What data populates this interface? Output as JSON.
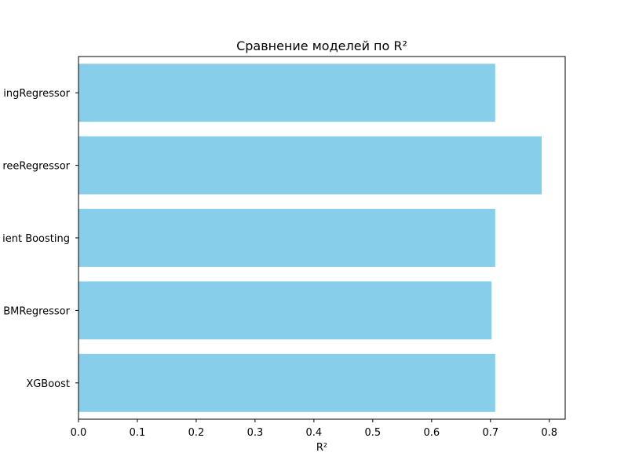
{
  "chart_data": {
    "type": "bar",
    "orientation": "horizontal",
    "title": "Сравнение моделей по R²",
    "xlabel": "R²",
    "ylabel": "",
    "categories": [
      "XGBoost",
      "LGBMRegressor",
      "Gradient Boosting",
      "ExtraTreeRegressor",
      "HistGradientBoostingRegressor"
    ],
    "categories_visible": [
      "XGBoost",
      "BMRegressor",
      "ient Boosting",
      "reeRegressor",
      "ingRegressor"
    ],
    "values": [
      0.708,
      0.702,
      0.708,
      0.787,
      0.708
    ],
    "xlim": [
      0.0,
      0.827
    ],
    "xticks": [
      0.0,
      0.1,
      0.2,
      0.3,
      0.4,
      0.5,
      0.6,
      0.7,
      0.8
    ],
    "xtick_labels": [
      "0.0",
      "0.1",
      "0.2",
      "0.3",
      "0.4",
      "0.5",
      "0.6",
      "0.7",
      "0.8"
    ],
    "grid": false,
    "bar_color": "#87ceeb"
  }
}
